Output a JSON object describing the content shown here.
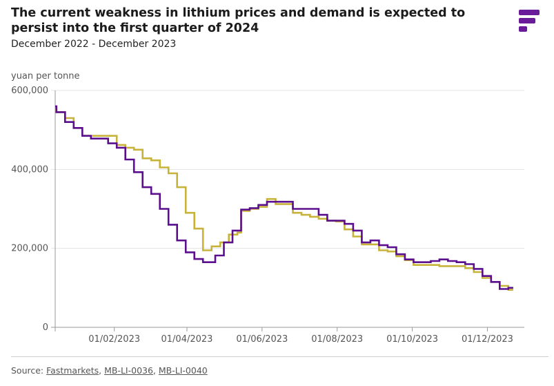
{
  "chart_data": {
    "type": "line",
    "title": "The current weakness in lithium prices and demand is expected to persist into the first quarter of 2024",
    "subtitle": "December 2022 - December 2023",
    "ylabel": "yuan per tonne",
    "ylim": [
      0,
      600000
    ],
    "yticks": [
      "600,000",
      "400,000",
      "200,000",
      "0"
    ],
    "ytick_values": [
      600000,
      400000,
      200000,
      0
    ],
    "xticks": [
      "01/02/2023",
      "01/04/2023",
      "01/06/2023",
      "01/08/2023",
      "01/10/2023",
      "01/12/2023"
    ],
    "xtick_dates": [
      "2023-02-01",
      "2023-04-01",
      "2023-06-01",
      "2023-08-01",
      "2023-10-01",
      "2023-12-01"
    ],
    "xlim": [
      "2022-12-15",
      "2023-12-31"
    ],
    "grid": "horizontal",
    "series": [
      {
        "color": "#5b0f8e",
        "points": [
          [
            "2022-12-15",
            560000
          ],
          [
            "2022-12-16",
            545000
          ],
          [
            "2022-12-23",
            520000
          ],
          [
            "2022-12-30",
            505000
          ],
          [
            "2023-01-06",
            485000
          ],
          [
            "2023-01-13",
            478000
          ],
          [
            "2023-01-27",
            466000
          ],
          [
            "2023-02-03",
            455000
          ],
          [
            "2023-02-10",
            425000
          ],
          [
            "2023-02-17",
            393000
          ],
          [
            "2023-02-24",
            355000
          ],
          [
            "2023-03-03",
            338000
          ],
          [
            "2023-03-10",
            300000
          ],
          [
            "2023-03-17",
            260000
          ],
          [
            "2023-03-24",
            220000
          ],
          [
            "2023-03-31",
            190000
          ],
          [
            "2023-04-07",
            173000
          ],
          [
            "2023-04-14",
            165000
          ],
          [
            "2023-04-24",
            182000
          ],
          [
            "2023-05-01",
            215000
          ],
          [
            "2023-05-08",
            245000
          ],
          [
            "2023-05-15",
            298000
          ],
          [
            "2023-05-22",
            302000
          ],
          [
            "2023-05-29",
            310000
          ],
          [
            "2023-06-05",
            318000
          ],
          [
            "2023-06-12",
            318000
          ],
          [
            "2023-06-19",
            318000
          ],
          [
            "2023-06-26",
            300000
          ],
          [
            "2023-07-03",
            300000
          ],
          [
            "2023-07-10",
            300000
          ],
          [
            "2023-07-17",
            285000
          ],
          [
            "2023-07-24",
            270000
          ],
          [
            "2023-07-31",
            270000
          ],
          [
            "2023-08-07",
            262000
          ],
          [
            "2023-08-14",
            245000
          ],
          [
            "2023-08-21",
            215000
          ],
          [
            "2023-08-28",
            220000
          ],
          [
            "2023-09-04",
            208000
          ],
          [
            "2023-09-11",
            203000
          ],
          [
            "2023-09-18",
            185000
          ],
          [
            "2023-09-25",
            172000
          ],
          [
            "2023-10-02",
            165000
          ],
          [
            "2023-10-16",
            168000
          ],
          [
            "2023-10-23",
            172000
          ],
          [
            "2023-10-30",
            168000
          ],
          [
            "2023-11-06",
            165000
          ],
          [
            "2023-11-13",
            160000
          ],
          [
            "2023-11-20",
            148000
          ],
          [
            "2023-11-27",
            130000
          ],
          [
            "2023-12-04",
            115000
          ],
          [
            "2023-12-11",
            97000
          ],
          [
            "2023-12-18",
            100000
          ],
          [
            "2023-12-22",
            100000
          ]
        ]
      },
      {
        "color": "#c7b23a",
        "points": [
          [
            "2022-12-15",
            550000
          ],
          [
            "2022-12-16",
            545000
          ],
          [
            "2022-12-23",
            530000
          ],
          [
            "2022-12-30",
            505000
          ],
          [
            "2023-01-06",
            485000
          ],
          [
            "2023-02-03",
            462000
          ],
          [
            "2023-02-10",
            455000
          ],
          [
            "2023-02-17",
            450000
          ],
          [
            "2023-02-24",
            428000
          ],
          [
            "2023-03-03",
            423000
          ],
          [
            "2023-03-10",
            405000
          ],
          [
            "2023-03-17",
            390000
          ],
          [
            "2023-03-24",
            355000
          ],
          [
            "2023-03-31",
            290000
          ],
          [
            "2023-04-07",
            250000
          ],
          [
            "2023-04-14",
            195000
          ],
          [
            "2023-04-21",
            205000
          ],
          [
            "2023-04-28",
            215000
          ],
          [
            "2023-05-05",
            235000
          ],
          [
            "2023-05-12",
            240000
          ],
          [
            "2023-05-15",
            295000
          ],
          [
            "2023-05-22",
            300000
          ],
          [
            "2023-05-29",
            305000
          ],
          [
            "2023-06-05",
            325000
          ],
          [
            "2023-06-12",
            312000
          ],
          [
            "2023-06-19",
            312000
          ],
          [
            "2023-06-26",
            290000
          ],
          [
            "2023-07-03",
            285000
          ],
          [
            "2023-07-10",
            280000
          ],
          [
            "2023-07-17",
            275000
          ],
          [
            "2023-07-24",
            270000
          ],
          [
            "2023-07-31",
            268000
          ],
          [
            "2023-08-07",
            248000
          ],
          [
            "2023-08-14",
            230000
          ],
          [
            "2023-08-21",
            210000
          ],
          [
            "2023-08-28",
            210000
          ],
          [
            "2023-09-04",
            195000
          ],
          [
            "2023-09-11",
            192000
          ],
          [
            "2023-09-18",
            180000
          ],
          [
            "2023-09-25",
            170000
          ],
          [
            "2023-10-02",
            158000
          ],
          [
            "2023-10-16",
            158000
          ],
          [
            "2023-10-23",
            155000
          ],
          [
            "2023-11-06",
            155000
          ],
          [
            "2023-11-13",
            150000
          ],
          [
            "2023-11-20",
            140000
          ],
          [
            "2023-11-27",
            125000
          ],
          [
            "2023-12-04",
            115000
          ],
          [
            "2023-12-11",
            105000
          ],
          [
            "2023-12-18",
            95000
          ],
          [
            "2023-12-22",
            95000
          ]
        ]
      }
    ]
  },
  "source": {
    "prefix": "Source: ",
    "links": [
      "Fastmarkets",
      "MB-LI-0036",
      "MB-LI-0040"
    ],
    "separator": ", "
  }
}
